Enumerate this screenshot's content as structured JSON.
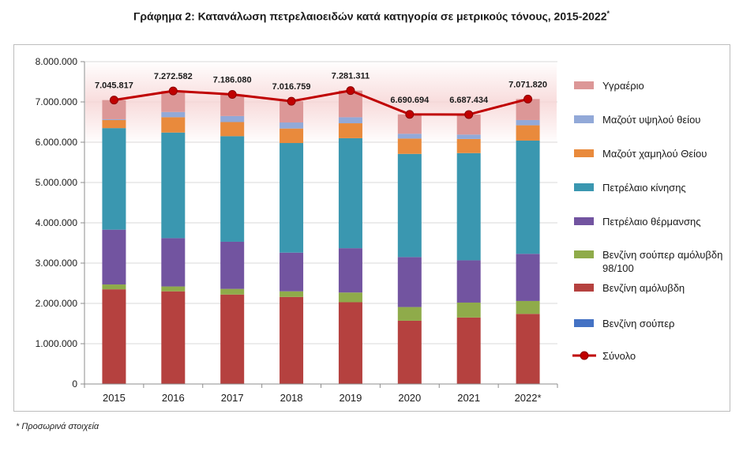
{
  "page": {
    "title": "Γράφημα 2: Κατανάλωση πετρελαιοειδών κατά κατηγορία σε μετρικούς τόνους, 2015-2022",
    "title_mark": "*",
    "footnote": "* Προσωρινά στοιχεία"
  },
  "chart_data": {
    "type": "bar",
    "stacked": true,
    "title": "Γράφημα 2: Κατανάλωση πετρελαιοειδών κατά κατηγορία σε μετρικούς τόνους, 2015-2022*",
    "xlabel": "",
    "ylabel": "",
    "ylim": [
      0,
      8000000
    ],
    "yticks": [
      0,
      1000000,
      2000000,
      3000000,
      4000000,
      5000000,
      6000000,
      7000000,
      8000000
    ],
    "ytick_labels": [
      "0",
      "1.000.000",
      "2.000.000",
      "3.000.000",
      "4.000.000",
      "5.000.000",
      "6.000.000",
      "7.000.000",
      "8.000.000"
    ],
    "grid": true,
    "legend_position": "right",
    "categories": [
      "2015",
      "2016",
      "2017",
      "2018",
      "2019",
      "2020",
      "2021",
      "2022*"
    ],
    "series": [
      {
        "name": "Βενζίνη σούπερ",
        "color": "#4472c4",
        "values": [
          0,
          0,
          0,
          0,
          0,
          0,
          0,
          0
        ]
      },
      {
        "name": "Βενζίνη αμόλυβδη",
        "color": "#b5413f",
        "values": [
          2350000,
          2300000,
          2220000,
          2160000,
          2030000,
          1570000,
          1650000,
          1740000
        ]
      },
      {
        "name": "Βενζίνη σούπερ αμόλυβδη 98/100",
        "color": "#8fab4a",
        "values": [
          120000,
          120000,
          140000,
          140000,
          240000,
          340000,
          370000,
          320000
        ]
      },
      {
        "name": "Πετρέλαιο θέρμανσης",
        "color": "#7254a0",
        "values": [
          1360000,
          1200000,
          1170000,
          960000,
          1100000,
          1240000,
          1050000,
          1170000
        ]
      },
      {
        "name": "Πετρέλαιο κίνησης",
        "color": "#3a97b0",
        "values": [
          2520000,
          2620000,
          2620000,
          2720000,
          2730000,
          2560000,
          2660000,
          2810000
        ]
      },
      {
        "name": "Μαζούτ χαμηλού Θείου",
        "color": "#e98a3c",
        "values": [
          200000,
          380000,
          350000,
          360000,
          370000,
          380000,
          350000,
          380000
        ]
      },
      {
        "name": "Μαζούτ υψηλού θείου",
        "color": "#92a9d8",
        "values": [
          20000,
          130000,
          150000,
          150000,
          150000,
          120000,
          110000,
          130000
        ]
      },
      {
        "name": "Υγραέριο",
        "color": "#dc9797",
        "values": [
          475817,
          522582,
          536080,
          526759,
          661311,
          480694,
          497434,
          521820
        ]
      }
    ],
    "line_series": {
      "name": "Σύνολο",
      "color": "#c00000",
      "values": [
        7045817,
        7272582,
        7186080,
        7016759,
        7281311,
        6690694,
        6687434,
        7071820
      ],
      "data_labels": [
        "7.045.817",
        "7.272.582",
        "7.186.080",
        "7.016.759",
        "7.281.311",
        "6.690.694",
        "6.687.434",
        "7.071.820"
      ]
    },
    "legend": [
      {
        "label": "Υγραέριο",
        "type": "bar",
        "color": "#dc9797"
      },
      {
        "label": "Μαζούτ υψηλού θείου",
        "type": "bar",
        "color": "#92a9d8"
      },
      {
        "label": "Μαζούτ χαμηλού Θείου",
        "type": "bar",
        "color": "#e98a3c"
      },
      {
        "label": "Πετρέλαιο κίνησης",
        "type": "bar",
        "color": "#3a97b0"
      },
      {
        "label": "Πετρέλαιο θέρμανσης",
        "type": "bar",
        "color": "#7254a0"
      },
      {
        "label": "Βενζίνη σούπερ αμόλυβδη",
        "label_line2": "98/100",
        "type": "bar",
        "color": "#8fab4a"
      },
      {
        "label": "Βενζίνη αμόλυβδη",
        "type": "bar",
        "color": "#b5413f"
      },
      {
        "label": "Βενζίνη σούπερ",
        "type": "bar",
        "color": "#4472c4"
      },
      {
        "label": "Σύνολο",
        "type": "line",
        "color": "#c00000"
      }
    ]
  }
}
